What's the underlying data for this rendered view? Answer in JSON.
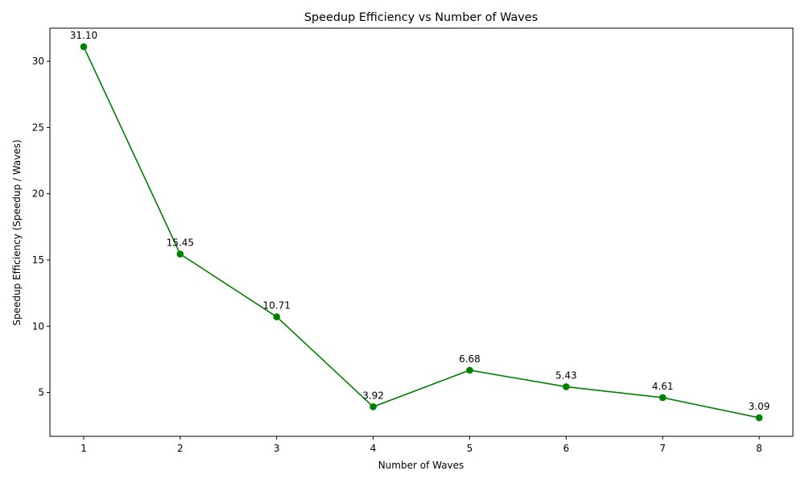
{
  "chart_data": {
    "type": "line",
    "title": "Speedup Efficiency vs Number of Waves",
    "xlabel": "Number of Waves",
    "ylabel": "Speedup Efficiency (Speedup / Waves)",
    "x": [
      1,
      2,
      3,
      4,
      5,
      6,
      7,
      8
    ],
    "series": [
      {
        "values": [
          31.1,
          15.45,
          10.71,
          3.92,
          6.68,
          5.43,
          4.61,
          3.09
        ],
        "labels": [
          "31.10",
          "15.45",
          "10.71",
          "3.92",
          "6.68",
          "5.43",
          "4.61",
          "3.09"
        ],
        "color": "#008000",
        "marker": "circle"
      }
    ],
    "xticks": [
      "1",
      "2",
      "3",
      "4",
      "5",
      "6",
      "7",
      "8"
    ],
    "yticks": [
      "5",
      "10",
      "15",
      "20",
      "25",
      "30"
    ],
    "xlim": [
      0.65,
      8.35
    ],
    "ylim": [
      1.69,
      32.5
    ],
    "grid": false,
    "legend": "none"
  }
}
